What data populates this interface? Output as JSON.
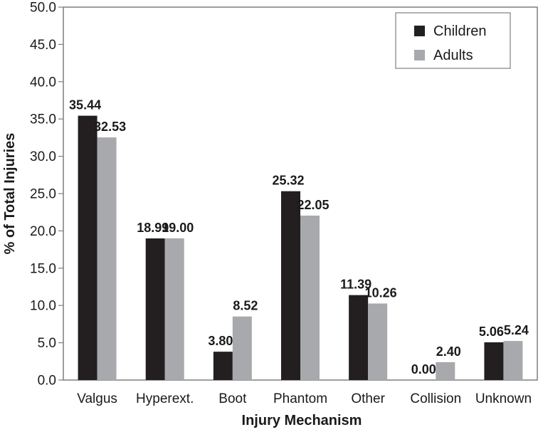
{
  "chart_data": {
    "type": "bar",
    "title": "",
    "xlabel": "Injury Mechanism",
    "ylabel": "% of Total Injuries",
    "ylim": [
      0,
      50
    ],
    "yticks": [
      "0.0",
      "5.0",
      "10.0",
      "15.0",
      "20.0",
      "25.0",
      "30.0",
      "35.0",
      "40.0",
      "45.0",
      "50.0"
    ],
    "grid": false,
    "legend_position": "top-right",
    "categories": [
      "Valgus",
      "Hyperext.",
      "Boot",
      "Phantom",
      "Other",
      "Collision",
      "Unknown"
    ],
    "series": [
      {
        "name": "Children",
        "color": "#231f20",
        "values": [
          35.44,
          18.99,
          3.8,
          25.32,
          11.39,
          0.0,
          5.06
        ],
        "labels": [
          "35.44",
          "18.99",
          "3.80",
          "25.32",
          "11.39",
          "0.00",
          "5.06"
        ]
      },
      {
        "name": "Adults",
        "color": "#a7a9ac",
        "values": [
          32.53,
          19.0,
          8.52,
          22.05,
          10.26,
          2.4,
          5.24
        ],
        "labels": [
          "32.53",
          "19.00",
          "8.52",
          "22.05",
          "10.26",
          "2.40",
          "5.24"
        ]
      }
    ]
  }
}
